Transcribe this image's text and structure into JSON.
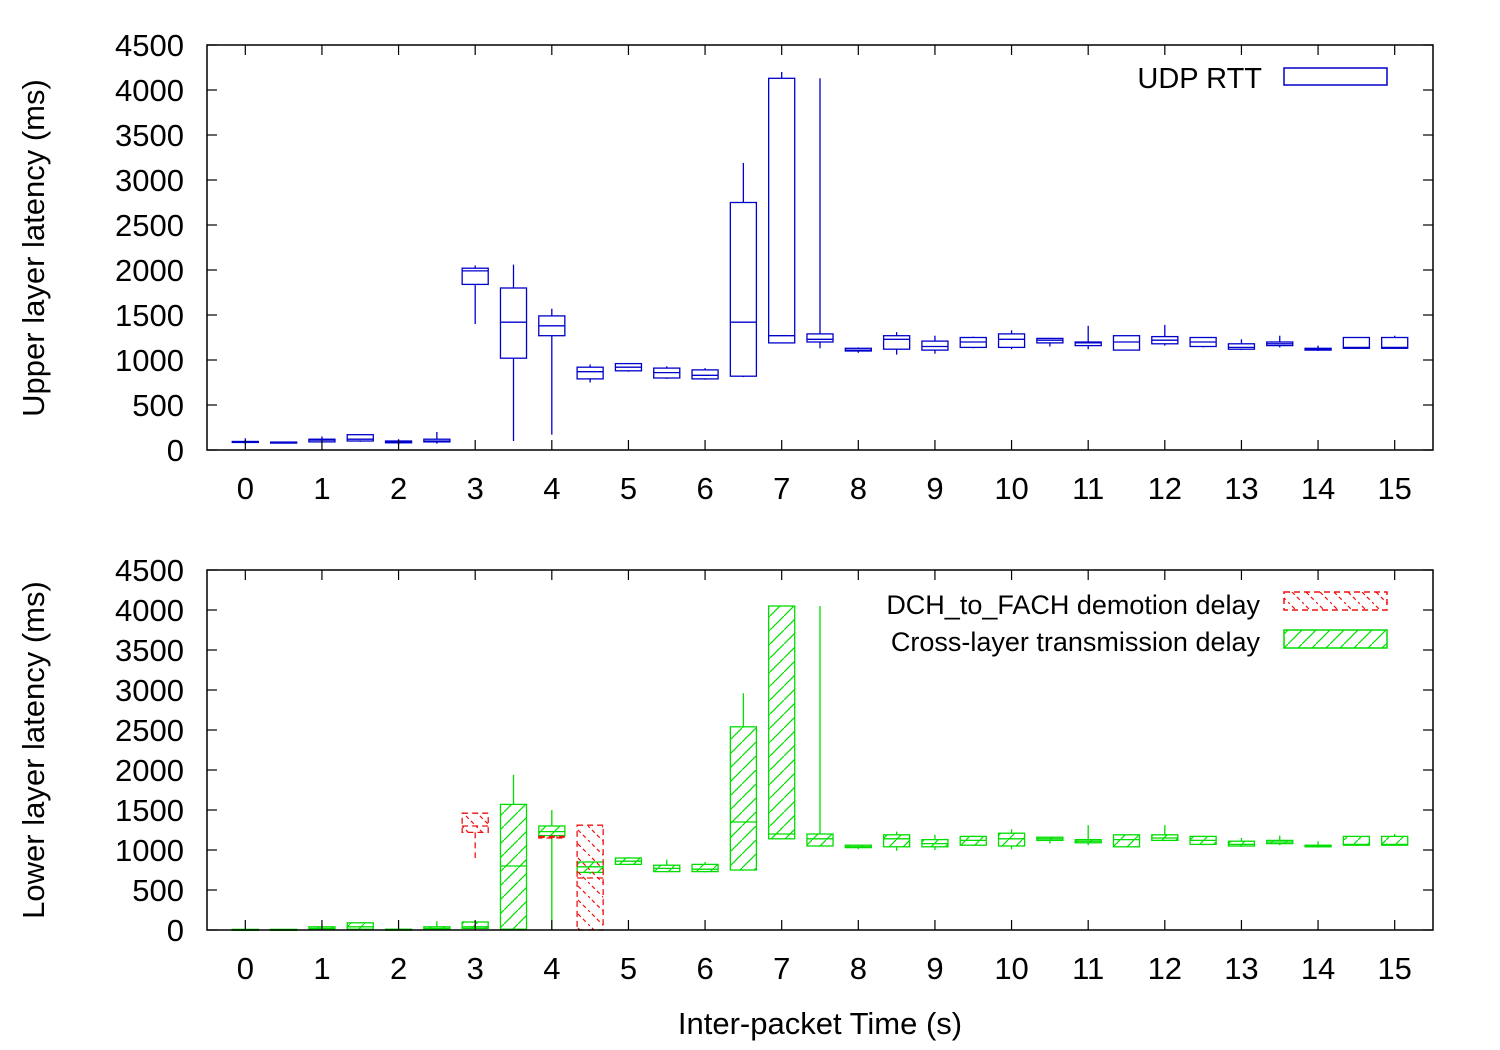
{
  "chart_data": [
    {
      "type": "box",
      "panel": "upper",
      "ylabel": "Upper layer latency (ms)",
      "xlabel": "",
      "ylim": [
        0,
        4500
      ],
      "yticks": [
        "0",
        "500",
        "1000",
        "1500",
        "2000",
        "2500",
        "3000",
        "3500",
        "4000",
        "4500"
      ],
      "xticks": [
        "0",
        "1",
        "2",
        "3",
        "4",
        "5",
        "6",
        "7",
        "8",
        "9",
        "10",
        "11",
        "12",
        "13",
        "14",
        "15"
      ],
      "xlim": [
        -0.5,
        15.5
      ],
      "grid": false,
      "legend_position": "top-right",
      "series": [
        {
          "name": "UDP RTT",
          "color": "#0000cc",
          "style": "empty",
          "boxes": [
            {
              "x": 0.0,
              "min": 70,
              "q1": 85,
              "med": 90,
              "q3": 95,
              "max": 130
            },
            {
              "x": 0.5,
              "min": 80,
              "q1": 82,
              "med": 85,
              "q3": 88,
              "max": 90
            },
            {
              "x": 1.0,
              "min": 80,
              "q1": 90,
              "med": 110,
              "q3": 120,
              "max": 150
            },
            {
              "x": 1.5,
              "min": 90,
              "q1": 100,
              "med": 120,
              "q3": 170,
              "max": 170
            },
            {
              "x": 2.0,
              "min": 60,
              "q1": 80,
              "med": 90,
              "q3": 100,
              "max": 120
            },
            {
              "x": 2.5,
              "min": 70,
              "q1": 90,
              "med": 100,
              "q3": 120,
              "max": 200
            },
            {
              "x": 3.0,
              "min": 1400,
              "q1": 1840,
              "med": 1990,
              "q3": 2020,
              "max": 2050
            },
            {
              "x": 3.5,
              "min": 100,
              "q1": 1020,
              "med": 1420,
              "q3": 1800,
              "max": 2060
            },
            {
              "x": 4.0,
              "min": 170,
              "q1": 1270,
              "med": 1380,
              "q3": 1490,
              "max": 1570
            },
            {
              "x": 4.5,
              "min": 750,
              "q1": 790,
              "med": 870,
              "q3": 920,
              "max": 950
            },
            {
              "x": 5.0,
              "min": 870,
              "q1": 880,
              "med": 920,
              "q3": 960,
              "max": 960
            },
            {
              "x": 5.5,
              "min": 790,
              "q1": 800,
              "med": 860,
              "q3": 910,
              "max": 930
            },
            {
              "x": 6.0,
              "min": 780,
              "q1": 790,
              "med": 830,
              "q3": 890,
              "max": 910
            },
            {
              "x": 6.5,
              "min": 810,
              "q1": 820,
              "med": 1420,
              "q3": 2750,
              "max": 3190
            },
            {
              "x": 7.0,
              "min": 1190,
              "q1": 1190,
              "med": 1270,
              "q3": 4130,
              "max": 4200
            },
            {
              "x": 7.5,
              "min": 1130,
              "q1": 1200,
              "med": 1230,
              "q3": 1290,
              "max": 4130
            },
            {
              "x": 8.0,
              "min": 1080,
              "q1": 1100,
              "med": 1110,
              "q3": 1130,
              "max": 1140
            },
            {
              "x": 8.5,
              "min": 1060,
              "q1": 1120,
              "med": 1230,
              "q3": 1270,
              "max": 1310
            },
            {
              "x": 9.0,
              "min": 1070,
              "q1": 1110,
              "med": 1150,
              "q3": 1210,
              "max": 1270
            },
            {
              "x": 9.5,
              "min": 1130,
              "q1": 1140,
              "med": 1200,
              "q3": 1250,
              "max": 1260
            },
            {
              "x": 10.0,
              "min": 1120,
              "q1": 1140,
              "med": 1230,
              "q3": 1290,
              "max": 1330
            },
            {
              "x": 10.5,
              "min": 1150,
              "q1": 1190,
              "med": 1220,
              "q3": 1240,
              "max": 1240
            },
            {
              "x": 11.0,
              "min": 1120,
              "q1": 1160,
              "med": 1190,
              "q3": 1200,
              "max": 1380
            },
            {
              "x": 11.5,
              "min": 1110,
              "q1": 1110,
              "med": 1200,
              "q3": 1270,
              "max": 1270
            },
            {
              "x": 12.0,
              "min": 1160,
              "q1": 1180,
              "med": 1220,
              "q3": 1260,
              "max": 1390
            },
            {
              "x": 12.5,
              "min": 1140,
              "q1": 1150,
              "med": 1200,
              "q3": 1250,
              "max": 1250
            },
            {
              "x": 13.0,
              "min": 1110,
              "q1": 1120,
              "med": 1140,
              "q3": 1180,
              "max": 1230
            },
            {
              "x": 13.5,
              "min": 1140,
              "q1": 1160,
              "med": 1180,
              "q3": 1200,
              "max": 1270
            },
            {
              "x": 14.0,
              "min": 1100,
              "q1": 1110,
              "med": 1120,
              "q3": 1130,
              "max": 1160
            },
            {
              "x": 14.5,
              "min": 1130,
              "q1": 1130,
              "med": 1140,
              "q3": 1250,
              "max": 1250
            },
            {
              "x": 15.0,
              "min": 1130,
              "q1": 1130,
              "med": 1140,
              "q3": 1250,
              "max": 1270
            }
          ]
        }
      ]
    },
    {
      "type": "box",
      "panel": "lower",
      "ylabel": "Lower layer latency (ms)",
      "xlabel": "Inter-packet Time (s)",
      "ylim": [
        0,
        4500
      ],
      "yticks": [
        "0",
        "500",
        "1000",
        "1500",
        "2000",
        "2500",
        "3000",
        "3500",
        "4000",
        "4500"
      ],
      "xticks": [
        "0",
        "1",
        "2",
        "3",
        "4",
        "5",
        "6",
        "7",
        "8",
        "9",
        "10",
        "11",
        "12",
        "13",
        "14",
        "15"
      ],
      "xlim": [
        -0.5,
        15.5
      ],
      "grid": false,
      "legend_position": "top-right",
      "series": [
        {
          "name": "DCH_to_FACH demotion delay",
          "color": "#ee1111",
          "style": "dashed-hatch",
          "boxes": [
            {
              "x": 3.0,
              "min": 900,
              "q1": 1220,
              "med": 1300,
              "q3": 1460,
              "max": 1460
            },
            {
              "x": 4.0,
              "min": 1140,
              "q1": 1150,
              "med": 1160,
              "q3": 1170,
              "max": 1180
            },
            {
              "x": 4.5,
              "min": 0,
              "q1": 0,
              "med": 650,
              "q3": 1310,
              "max": 1310
            }
          ]
        },
        {
          "name": "Cross-layer transmission delay",
          "color": "#00dd00",
          "style": "hatch",
          "boxes": [
            {
              "x": 0.0,
              "min": 0,
              "q1": 2,
              "med": 5,
              "q3": 8,
              "max": 10
            },
            {
              "x": 0.5,
              "min": 0,
              "q1": 2,
              "med": 5,
              "q3": 8,
              "max": 10
            },
            {
              "x": 1.0,
              "min": 0,
              "q1": 10,
              "med": 20,
              "q3": 40,
              "max": 60
            },
            {
              "x": 1.5,
              "min": 0,
              "q1": 10,
              "med": 40,
              "q3": 90,
              "max": 90
            },
            {
              "x": 2.0,
              "min": 0,
              "q1": 2,
              "med": 5,
              "q3": 10,
              "max": 15
            },
            {
              "x": 2.5,
              "min": 0,
              "q1": 10,
              "med": 20,
              "q3": 40,
              "max": 110
            },
            {
              "x": 3.0,
              "min": 0,
              "q1": 20,
              "med": 40,
              "q3": 100,
              "max": 100
            },
            {
              "x": 3.5,
              "min": 0,
              "q1": 10,
              "med": 800,
              "q3": 1570,
              "max": 1940
            },
            {
              "x": 4.0,
              "min": 0,
              "q1": 1180,
              "med": 1230,
              "q3": 1300,
              "max": 1500
            },
            {
              "x": 4.5,
              "min": 700,
              "q1": 720,
              "med": 790,
              "q3": 850,
              "max": 850
            },
            {
              "x": 5.0,
              "min": 810,
              "q1": 820,
              "med": 860,
              "q3": 900,
              "max": 910
            },
            {
              "x": 5.5,
              "min": 720,
              "q1": 730,
              "med": 770,
              "q3": 810,
              "max": 880
            },
            {
              "x": 6.0,
              "min": 720,
              "q1": 730,
              "med": 760,
              "q3": 820,
              "max": 850
            },
            {
              "x": 6.5,
              "min": 740,
              "q1": 750,
              "med": 1350,
              "q3": 2540,
              "max": 2960
            },
            {
              "x": 7.0,
              "min": 1140,
              "q1": 1140,
              "med": 1200,
              "q3": 4050,
              "max": 4050
            },
            {
              "x": 7.5,
              "min": 1050,
              "q1": 1050,
              "med": 1140,
              "q3": 1200,
              "max": 4050
            },
            {
              "x": 8.0,
              "min": 1010,
              "q1": 1030,
              "med": 1040,
              "q3": 1060,
              "max": 1070
            },
            {
              "x": 8.5,
              "min": 990,
              "q1": 1040,
              "med": 1140,
              "q3": 1190,
              "max": 1230
            },
            {
              "x": 9.0,
              "min": 1000,
              "q1": 1040,
              "med": 1080,
              "q3": 1130,
              "max": 1190
            },
            {
              "x": 9.5,
              "min": 1050,
              "q1": 1060,
              "med": 1120,
              "q3": 1170,
              "max": 1180
            },
            {
              "x": 10.0,
              "min": 1010,
              "q1": 1050,
              "med": 1140,
              "q3": 1210,
              "max": 1260
            },
            {
              "x": 10.5,
              "min": 1080,
              "q1": 1120,
              "med": 1140,
              "q3": 1160,
              "max": 1160
            },
            {
              "x": 11.0,
              "min": 1060,
              "q1": 1090,
              "med": 1110,
              "q3": 1130,
              "max": 1310
            },
            {
              "x": 11.5,
              "min": 1040,
              "q1": 1040,
              "med": 1130,
              "q3": 1190,
              "max": 1190
            },
            {
              "x": 12.0,
              "min": 1110,
              "q1": 1120,
              "med": 1150,
              "q3": 1190,
              "max": 1310
            },
            {
              "x": 12.5,
              "min": 1060,
              "q1": 1070,
              "med": 1120,
              "q3": 1170,
              "max": 1170
            },
            {
              "x": 13.0,
              "min": 1040,
              "q1": 1050,
              "med": 1070,
              "q3": 1110,
              "max": 1150
            },
            {
              "x": 13.5,
              "min": 1060,
              "q1": 1080,
              "med": 1100,
              "q3": 1120,
              "max": 1180
            },
            {
              "x": 14.0,
              "min": 1030,
              "q1": 1040,
              "med": 1050,
              "q3": 1060,
              "max": 1110
            },
            {
              "x": 14.5,
              "min": 1050,
              "q1": 1060,
              "med": 1070,
              "q3": 1170,
              "max": 1170
            },
            {
              "x": 15.0,
              "min": 1050,
              "q1": 1060,
              "med": 1070,
              "q3": 1170,
              "max": 1200
            }
          ]
        }
      ]
    }
  ]
}
